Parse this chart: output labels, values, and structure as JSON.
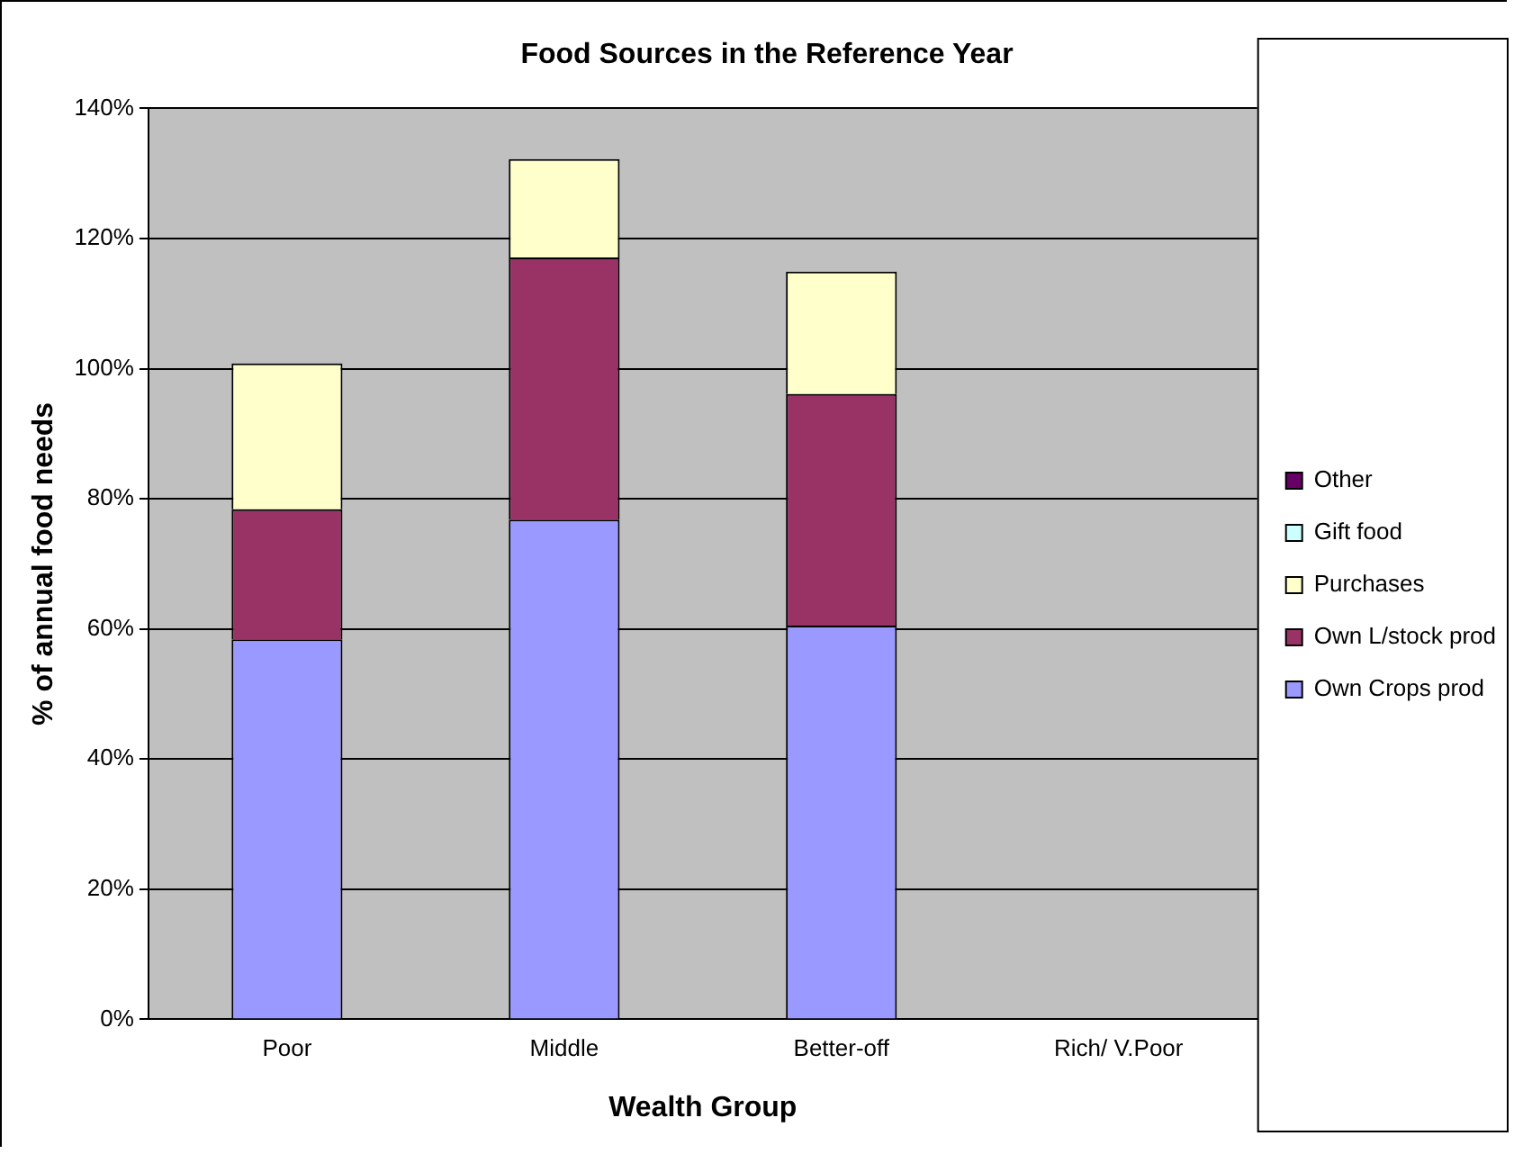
{
  "chart_data": {
    "type": "bar",
    "title": "Food Sources in the Reference Year",
    "xlabel": "Wealth Group",
    "ylabel": "% of annual food needs",
    "categories": [
      "Poor",
      "Middle",
      "Better-off",
      "Rich/ V.Poor"
    ],
    "stacked": true,
    "series": [
      {
        "name": "Own Crops prod",
        "color": "#9999ff",
        "values": [
          58.4,
          76.8,
          60.5,
          null
        ]
      },
      {
        "name": "Own L/stock prod",
        "color": "#993366",
        "values": [
          20.0,
          40.3,
          35.6,
          null
        ]
      },
      {
        "name": "Purchases",
        "color": "#ffffcc",
        "values": [
          22.4,
          15.1,
          18.8,
          null
        ]
      },
      {
        "name": "Gift food",
        "color": "#ccffff",
        "values": [
          null,
          null,
          null,
          null
        ]
      },
      {
        "name": "Other",
        "color": "#660066",
        "values": [
          null,
          null,
          null,
          null
        ]
      }
    ],
    "ylim": [
      0,
      140
    ],
    "yticks": [
      {
        "value": 0,
        "label": "0%"
      },
      {
        "value": 20,
        "label": "20%"
      },
      {
        "value": 40,
        "label": "40%"
      },
      {
        "value": 60,
        "label": "60%"
      },
      {
        "value": 80,
        "label": "80%"
      },
      {
        "value": 100,
        "label": "100%"
      },
      {
        "value": 120,
        "label": "120%"
      },
      {
        "value": 140,
        "label": "140%"
      }
    ],
    "grid": "y",
    "legend": "right"
  }
}
